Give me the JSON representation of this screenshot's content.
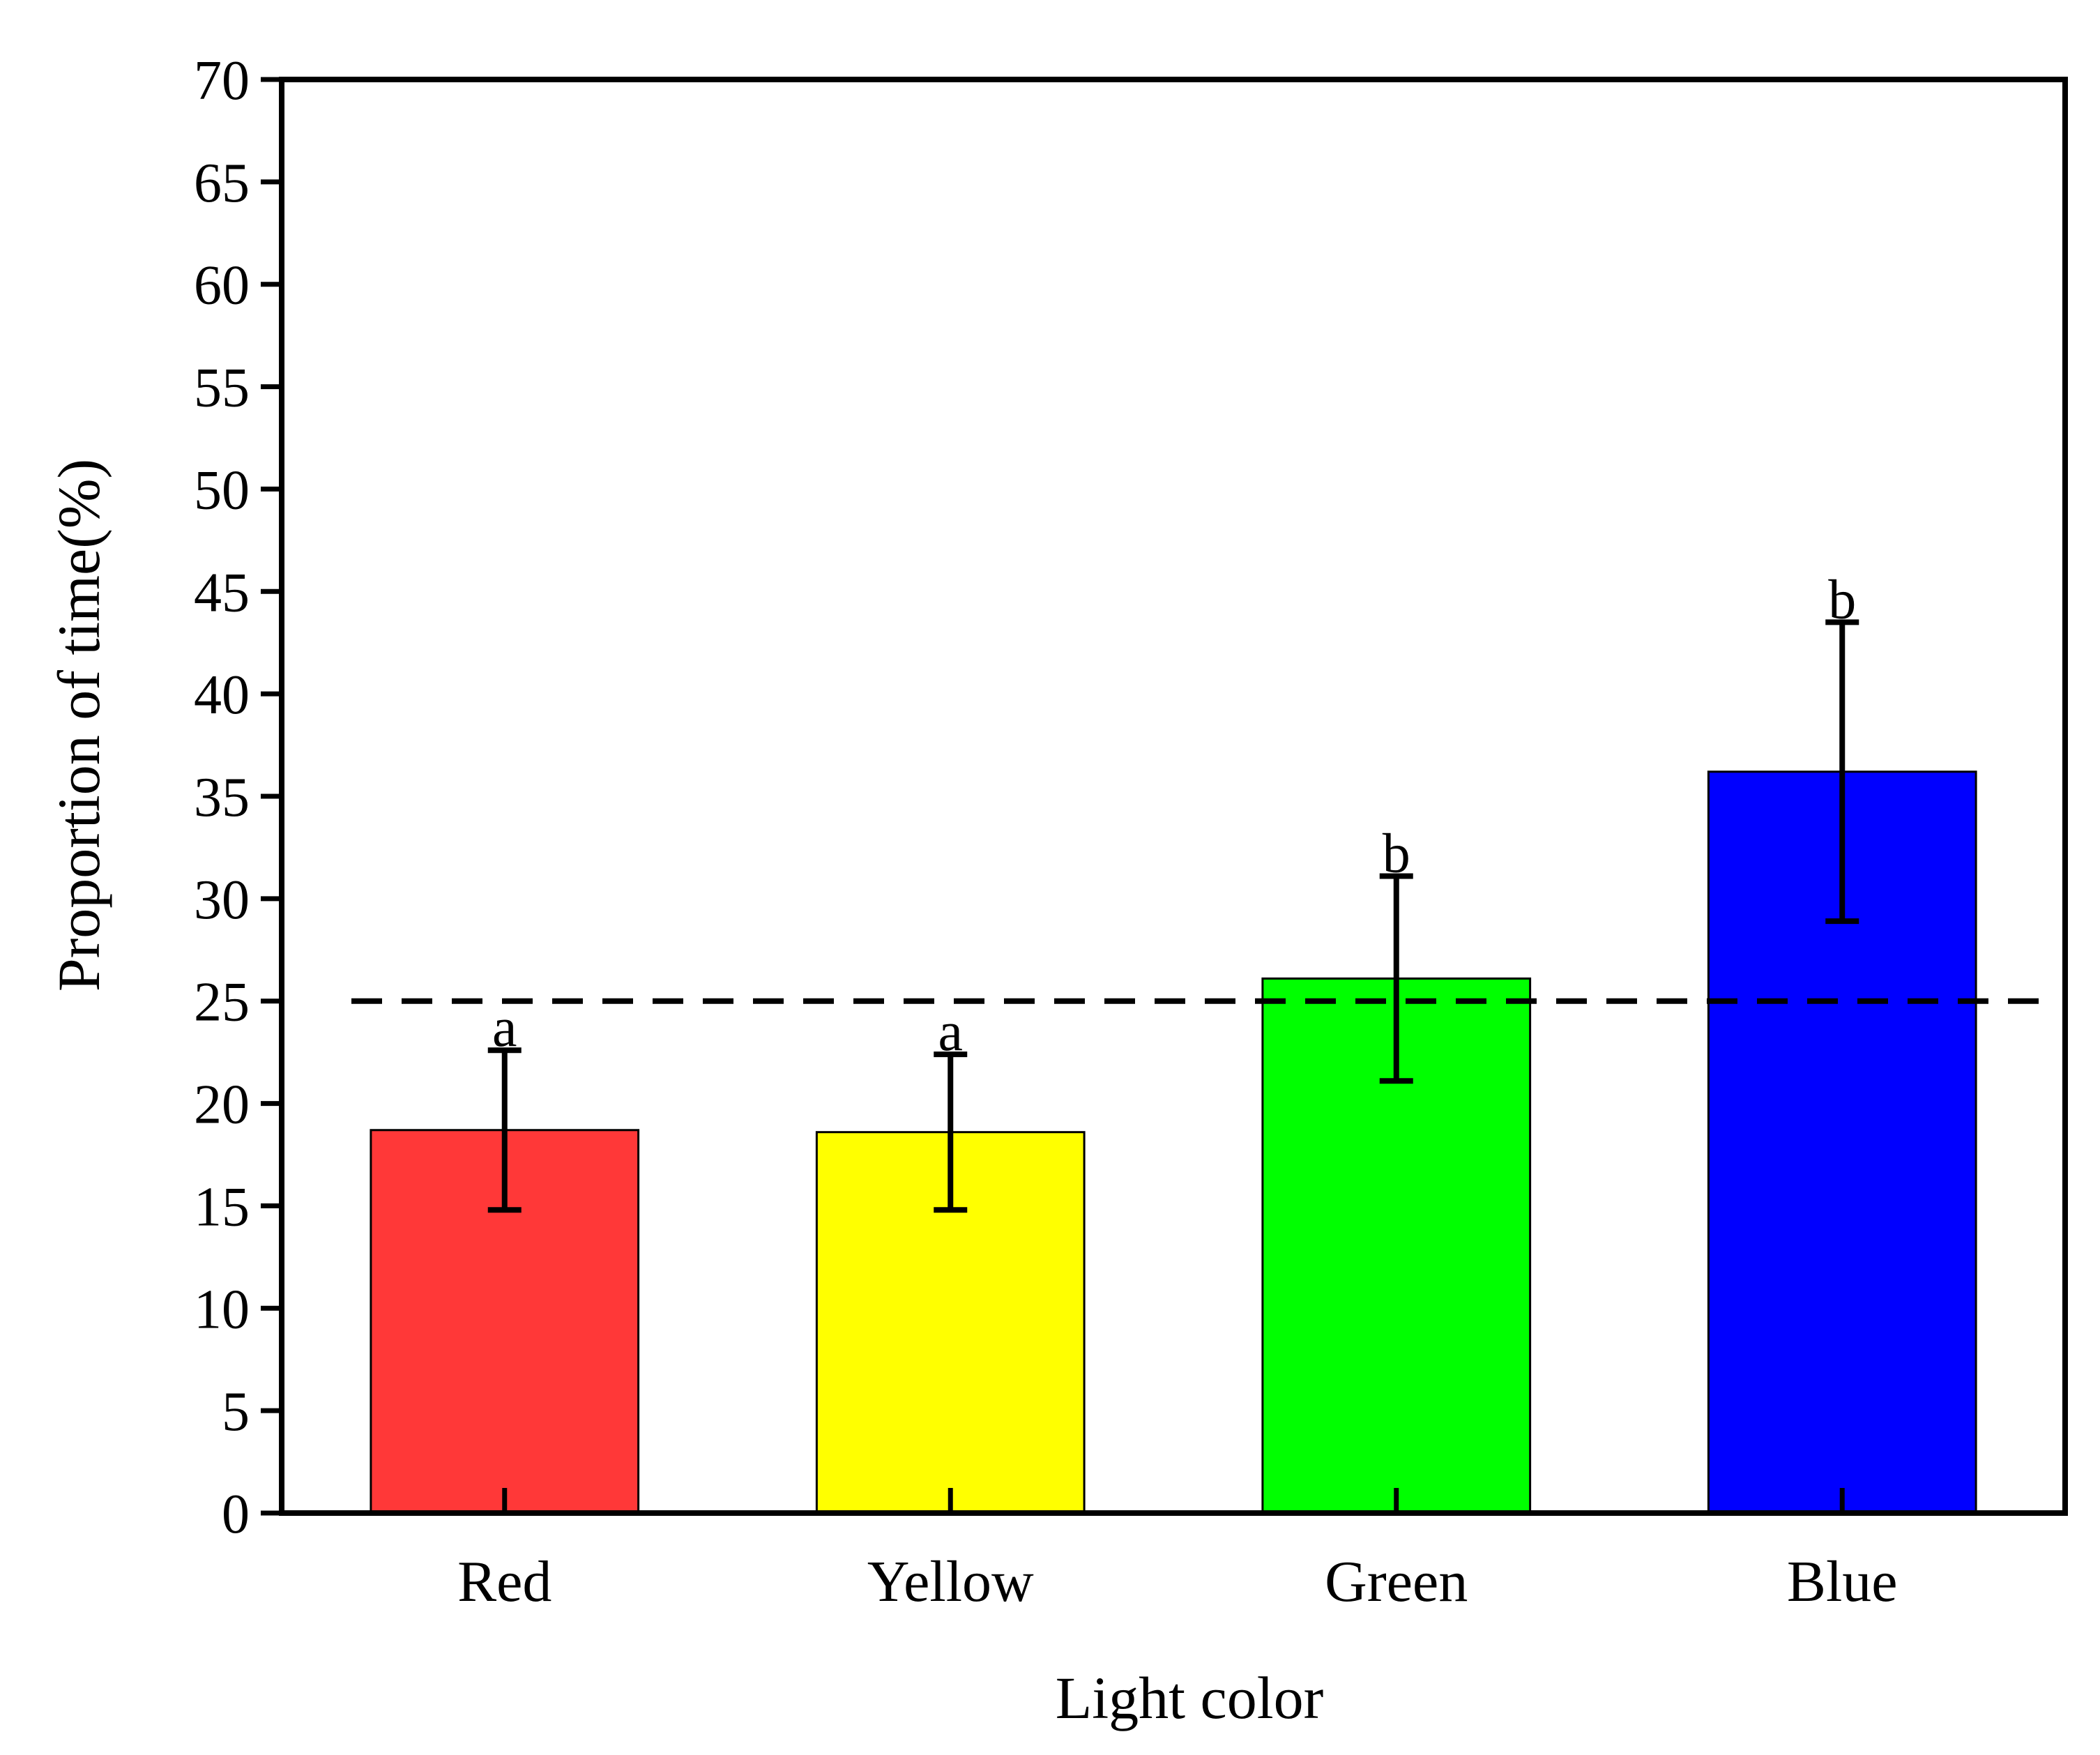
{
  "chart_data": {
    "type": "bar",
    "title": "",
    "xlabel": "Light color",
    "ylabel": "Proportion of time(%)",
    "ylim": [
      0,
      70
    ],
    "yticks": [
      0,
      5,
      10,
      15,
      20,
      25,
      30,
      35,
      40,
      45,
      50,
      55,
      60,
      65,
      70
    ],
    "categories": [
      "Red",
      "Yellow",
      "Green",
      "Blue"
    ],
    "values": [
      18.7,
      18.6,
      26.1,
      36.2
    ],
    "error_low": [
      14.8,
      14.8,
      21.1,
      28.9
    ],
    "error_high": [
      22.6,
      22.4,
      31.1,
      43.5
    ],
    "significance": [
      "a",
      "a",
      "b",
      "b"
    ],
    "bar_colors": [
      "#ff3838",
      "#ffff00",
      "#00ff00",
      "#0000ff"
    ],
    "reference_line": {
      "y": 25,
      "style": "dashed"
    },
    "grid": false,
    "legend": "none"
  }
}
